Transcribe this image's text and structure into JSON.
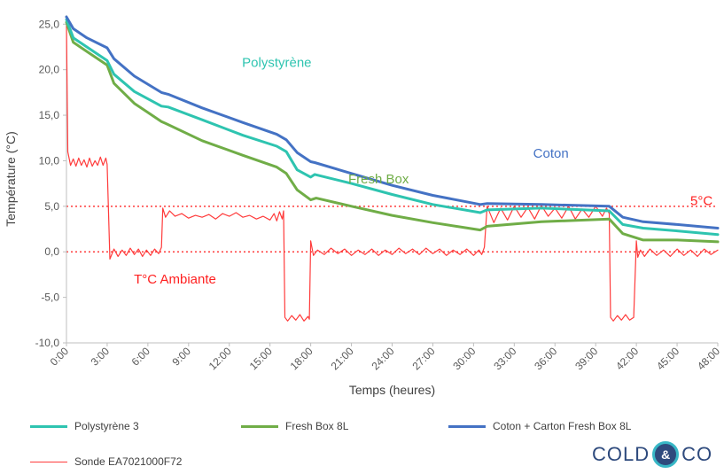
{
  "chart_data": {
    "type": "line",
    "xlabel": "Temps (heures)",
    "ylabel": "Température (°C)",
    "xlim": [
      0,
      48
    ],
    "ylim": [
      -10,
      26
    ],
    "y_ticks": [
      {
        "value": -10,
        "label": "-10,0"
      },
      {
        "value": -5,
        "label": "-5,0"
      },
      {
        "value": 0,
        "label": "0,0"
      },
      {
        "value": 5,
        "label": "5,0"
      },
      {
        "value": 10,
        "label": "10,0"
      },
      {
        "value": 15,
        "label": "15,0"
      },
      {
        "value": 20,
        "label": "20,0"
      },
      {
        "value": 25,
        "label": "25,0"
      }
    ],
    "x_ticks": [
      {
        "value": 0,
        "label": "0:00"
      },
      {
        "value": 3,
        "label": "3:00"
      },
      {
        "value": 6,
        "label": "6:00"
      },
      {
        "value": 9,
        "label": "9:00"
      },
      {
        "value": 12,
        "label": "12:00"
      },
      {
        "value": 15,
        "label": "15:00"
      },
      {
        "value": 18,
        "label": "18:00"
      },
      {
        "value": 21,
        "label": "21:00"
      },
      {
        "value": 24,
        "label": "24:00"
      },
      {
        "value": 27,
        "label": "27:00"
      },
      {
        "value": 30,
        "label": "30:00"
      },
      {
        "value": 33,
        "label": "33:00"
      },
      {
        "value": 36,
        "label": "36:00"
      },
      {
        "value": 39,
        "label": "39:00"
      },
      {
        "value": 42,
        "label": "42:00"
      },
      {
        "value": 45,
        "label": "45:00"
      },
      {
        "value": 48,
        "label": "48:00"
      }
    ],
    "grid": "none",
    "legend_position": "bottom",
    "reference_lines": [
      {
        "y": 5,
        "color": "#ff3b3b",
        "style": "dotted"
      },
      {
        "y": 0,
        "color": "#ff3b3b",
        "style": "dotted"
      }
    ],
    "annotations": [
      {
        "text": "Polystyrène",
        "x": 15.5,
        "y": 20.8,
        "color": "#2ec4b0"
      },
      {
        "text": "Coton",
        "x": 35.7,
        "y": 10.8,
        "color": "#4472c4"
      },
      {
        "text": "Fresh Box",
        "x": 23.0,
        "y": 8.0,
        "color": "#70ad47"
      },
      {
        "text": "5°C",
        "x": 46.8,
        "y": 5.6,
        "color": "#ff1f1f"
      },
      {
        "text": "T°C Ambiante",
        "x": 8.0,
        "y": -3.0,
        "color": "#ff1f1f"
      }
    ],
    "series": [
      {
        "name": "Polystyrène 3",
        "color": "#2ec4b0",
        "width": 3,
        "x": [
          0,
          0.5,
          1.5,
          3.0,
          3.5,
          5.0,
          7.0,
          7.5,
          10.0,
          13.0,
          15.5,
          16.2,
          17.0,
          18.0,
          18.3,
          21.0,
          24.0,
          27.0,
          30.5,
          31.0,
          35.0,
          40.0,
          41.0,
          42.5,
          45.0,
          48.0
        ],
        "y": [
          25.5,
          23.5,
          22.5,
          21.0,
          19.5,
          17.6,
          16.0,
          15.9,
          14.5,
          12.8,
          11.6,
          11.0,
          9.0,
          8.2,
          8.5,
          7.5,
          6.3,
          5.2,
          4.3,
          4.6,
          4.8,
          4.5,
          3.0,
          2.6,
          2.3,
          1.9
        ]
      },
      {
        "name": "Fresh Box 8L",
        "color": "#70ad47",
        "width": 3,
        "x": [
          0,
          0.5,
          1.5,
          3.0,
          3.5,
          5.0,
          7.0,
          7.3,
          10.0,
          13.0,
          15.5,
          16.2,
          17.0,
          18.0,
          18.4,
          21.0,
          24.0,
          27.0,
          30.5,
          31.0,
          35.0,
          40.0,
          41.0,
          42.5,
          45.0,
          48.0
        ],
        "y": [
          25.2,
          23.0,
          22.0,
          20.5,
          18.5,
          16.3,
          14.3,
          14.1,
          12.2,
          10.6,
          9.3,
          8.6,
          6.8,
          5.7,
          5.9,
          5.0,
          4.0,
          3.2,
          2.4,
          2.8,
          3.3,
          3.6,
          2.0,
          1.3,
          1.3,
          1.1
        ]
      },
      {
        "name": "Coton + Carton Fresh Box 8L",
        "color": "#4472c4",
        "width": 3,
        "x": [
          0,
          0.5,
          1.5,
          3.0,
          3.5,
          5.0,
          7.0,
          7.5,
          10.0,
          13.0,
          15.5,
          16.2,
          17.0,
          18.0,
          18.3,
          21.0,
          24.0,
          27.0,
          30.5,
          31.0,
          35.0,
          40.0,
          41.0,
          42.5,
          45.0,
          48.0
        ],
        "y": [
          25.8,
          24.5,
          23.5,
          22.4,
          21.2,
          19.3,
          17.5,
          17.3,
          15.8,
          14.2,
          12.9,
          12.3,
          10.9,
          9.9,
          9.8,
          8.6,
          7.3,
          6.2,
          5.2,
          5.3,
          5.2,
          5.0,
          3.8,
          3.3,
          3.0,
          2.6
        ]
      },
      {
        "name": "Sonde EA7021000F72",
        "color": "#ff3b3b",
        "width": 1.2,
        "x": [
          0,
          0.1,
          0.3,
          0.5,
          0.7,
          0.9,
          1.1,
          1.3,
          1.5,
          1.7,
          1.9,
          2.1,
          2.3,
          2.5,
          2.7,
          2.9,
          3.0,
          3.2,
          3.5,
          3.8,
          4.1,
          4.4,
          4.7,
          5.0,
          5.3,
          5.6,
          5.9,
          6.2,
          6.5,
          6.8,
          7.0,
          7.1,
          7.3,
          7.6,
          8.0,
          8.5,
          9.0,
          9.5,
          10.0,
          10.5,
          11.0,
          11.5,
          12.0,
          12.5,
          13.0,
          13.5,
          14.0,
          14.5,
          15.0,
          15.3,
          15.5,
          15.7,
          15.9,
          16.0,
          16.1,
          16.3,
          16.6,
          16.9,
          17.2,
          17.5,
          17.8,
          17.9,
          18.0,
          18.2,
          18.5,
          19.0,
          19.5,
          20.0,
          20.5,
          21.0,
          21.5,
          22.0,
          22.5,
          23.0,
          23.5,
          24.0,
          24.5,
          25.0,
          25.5,
          26.0,
          26.5,
          27.0,
          27.5,
          28.0,
          28.5,
          29.0,
          29.5,
          30.0,
          30.4,
          30.6,
          30.8,
          31.0,
          31.5,
          32.0,
          32.5,
          33.0,
          33.5,
          34.0,
          34.5,
          35.0,
          35.5,
          36.0,
          36.5,
          37.0,
          37.5,
          38.0,
          38.5,
          39.0,
          39.5,
          39.8,
          40.0,
          40.1,
          40.3,
          40.6,
          40.9,
          41.2,
          41.5,
          41.8,
          42.0,
          42.1,
          42.3,
          42.6,
          43.0,
          43.5,
          44.0,
          44.5,
          45.0,
          45.5,
          46.0,
          46.5,
          47.0,
          47.5,
          48.0
        ],
        "y": [
          25.0,
          11.0,
          9.5,
          10.2,
          9.4,
          10.3,
          9.5,
          10.1,
          9.3,
          10.3,
          9.4,
          10.0,
          9.5,
          10.4,
          9.5,
          10.3,
          9.6,
          -0.8,
          0.3,
          -0.5,
          0.2,
          -0.4,
          0.4,
          -0.3,
          0.3,
          -0.5,
          0.2,
          -0.4,
          0.3,
          -0.2,
          0.5,
          4.8,
          3.8,
          4.5,
          3.9,
          4.2,
          3.7,
          4.0,
          3.8,
          4.1,
          3.6,
          4.2,
          3.9,
          4.3,
          3.8,
          4.0,
          3.6,
          3.9,
          3.5,
          4.2,
          3.4,
          4.4,
          3.6,
          4.5,
          -7.2,
          -7.6,
          -7.0,
          -7.5,
          -6.9,
          -7.6,
          -7.1,
          -7.4,
          1.2,
          -0.4,
          0.2,
          -0.3,
          0.4,
          -0.2,
          0.3,
          -0.4,
          0.2,
          -0.3,
          0.3,
          -0.4,
          0.2,
          -0.3,
          0.4,
          -0.2,
          0.3,
          -0.3,
          0.4,
          -0.2,
          0.3,
          -0.4,
          0.2,
          -0.3,
          0.3,
          -0.4,
          0.2,
          -0.3,
          0.5,
          5.0,
          3.2,
          4.8,
          3.5,
          5.0,
          3.8,
          4.9,
          3.6,
          5.1,
          3.9,
          4.8,
          3.7,
          5.0,
          3.6,
          4.7,
          3.8,
          5.0,
          3.9,
          4.8,
          4.2,
          -7.2,
          -7.6,
          -7.0,
          -7.5,
          -6.9,
          -7.5,
          -7.2,
          1.2,
          -0.6,
          0.2,
          -0.5,
          0.3,
          -0.4,
          0.2,
          -0.5,
          0.3,
          -0.4,
          0.2,
          -0.5,
          0.3,
          -0.3,
          0.2
        ]
      }
    ]
  },
  "legend": {
    "items": [
      {
        "label": "Polystyrène 3",
        "color": "#2ec4b0",
        "thick": true
      },
      {
        "label": "Fresh Box 8L",
        "color": "#70ad47",
        "thick": true
      },
      {
        "label": "Coton + Carton Fresh Box 8L",
        "color": "#4472c4",
        "thick": true
      },
      {
        "label": "Sonde EA7021000F72",
        "color": "#ff3b3b",
        "thick": false
      }
    ]
  },
  "logo": {
    "left_text": "COLD",
    "amp": "&",
    "right_text": "CO"
  }
}
